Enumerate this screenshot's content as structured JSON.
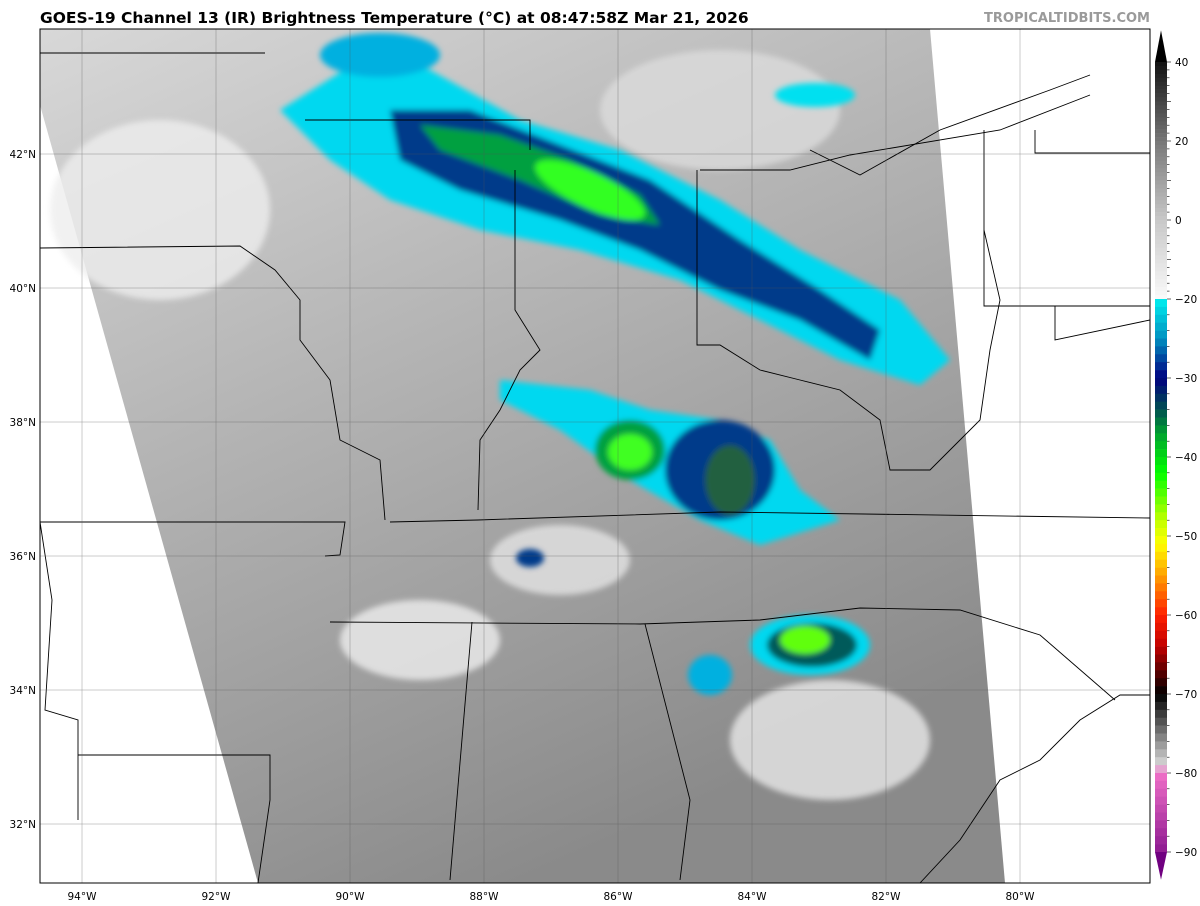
{
  "title": "GOES-19 Channel 13 (IR) Brightness Temperature (°C) at 08:47:58Z Mar 21, 2026",
  "watermark": "TROPICALTIDBITS.COM",
  "map": {
    "product": "GOES-19 Channel 13 (IR)",
    "units": "°C",
    "lon_labels": [
      "94°W",
      "92°W",
      "90°W",
      "88°W",
      "86°W",
      "84°W",
      "82°W",
      "80°W"
    ],
    "lat_labels": [
      "42°N",
      "40°N",
      "38°N",
      "36°N",
      "34°N",
      "32°N"
    ],
    "gridlines": true
  },
  "colorbar": {
    "range": [
      -93,
      47
    ],
    "tick_labels": [
      "40",
      "20",
      "0",
      "−20",
      "−30",
      "−40",
      "−50",
      "−60",
      "−70",
      "−80",
      "−90"
    ],
    "tick_values": [
      40,
      20,
      0,
      -20,
      -30,
      -40,
      -50,
      -60,
      -70,
      -80,
      -90
    ],
    "stops": [
      {
        "t": 47,
        "color": "#000000"
      },
      {
        "t": 40,
        "color": "#111111"
      },
      {
        "t": 20,
        "color": "#777777"
      },
      {
        "t": 0,
        "color": "#c8c8c8"
      },
      {
        "t": -19.9,
        "color": "#fafafa"
      },
      {
        "t": -20,
        "color": "#00f0f0"
      },
      {
        "t": -25,
        "color": "#0090c0"
      },
      {
        "t": -30,
        "color": "#000080"
      },
      {
        "t": -34,
        "color": "#005050"
      },
      {
        "t": -37,
        "color": "#00a030"
      },
      {
        "t": -42,
        "color": "#00ff00"
      },
      {
        "t": -48,
        "color": "#c0ff00"
      },
      {
        "t": -51,
        "color": "#ffff00"
      },
      {
        "t": -55,
        "color": "#ffa000"
      },
      {
        "t": -60,
        "color": "#ff2000"
      },
      {
        "t": -64,
        "color": "#c00000"
      },
      {
        "t": -69,
        "color": "#200000"
      },
      {
        "t": -70,
        "color": "#000000"
      },
      {
        "t": -79,
        "color": "#d8d8d8"
      },
      {
        "t": -80,
        "color": "#f070c8"
      },
      {
        "t": -93,
        "color": "#700080"
      }
    ]
  }
}
